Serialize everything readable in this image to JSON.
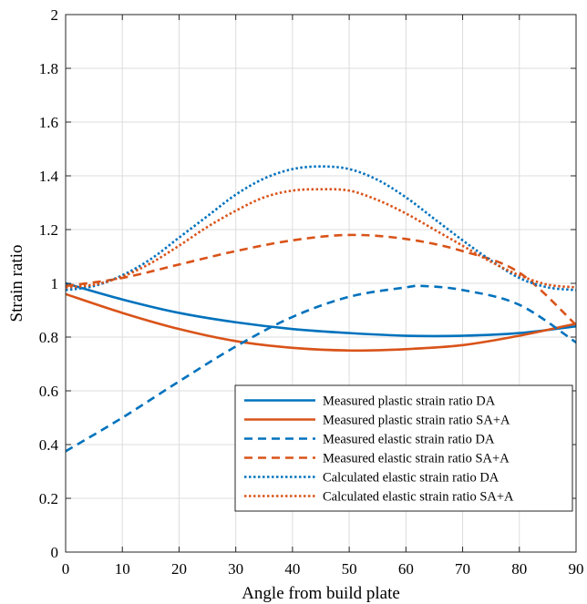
{
  "chart_data": {
    "type": "line",
    "title": "",
    "xlabel": "Angle from build plate",
    "ylabel": "Strain ratio",
    "xlim": [
      0,
      90
    ],
    "ylim": [
      0,
      2
    ],
    "xticks": [
      "0",
      "10",
      "20",
      "30",
      "40",
      "50",
      "60",
      "70",
      "80",
      "90"
    ],
    "yticks": [
      "0",
      "0.2",
      "0.4",
      "0.6",
      "0.8",
      "1",
      "1.2",
      "1.4",
      "1.6",
      "1.8",
      "2"
    ],
    "grid": true,
    "legend_position": "bottom-right",
    "series": [
      {
        "name": "Measured plastic strain ratio DA",
        "color": "#0072BD",
        "style": "solid",
        "x": [
          0,
          10,
          20,
          30,
          40,
          50,
          60,
          70,
          80,
          90
        ],
        "y": [
          1.0,
          0.94,
          0.89,
          0.855,
          0.83,
          0.815,
          0.805,
          0.805,
          0.815,
          0.84
        ]
      },
      {
        "name": "Measured plastic strain ratio SA+A",
        "color": "#D95319",
        "style": "solid",
        "x": [
          0,
          10,
          20,
          30,
          40,
          50,
          60,
          70,
          80,
          90
        ],
        "y": [
          0.96,
          0.89,
          0.83,
          0.785,
          0.76,
          0.75,
          0.755,
          0.77,
          0.805,
          0.85
        ]
      },
      {
        "name": "Measured elastic strain ratio DA",
        "color": "#0072BD",
        "style": "dashed",
        "x": [
          0,
          10,
          20,
          30,
          40,
          50,
          60,
          63,
          70,
          80,
          90
        ],
        "y": [
          0.375,
          0.5,
          0.635,
          0.765,
          0.875,
          0.95,
          0.985,
          0.99,
          0.975,
          0.92,
          0.78
        ]
      },
      {
        "name": "Measured elastic strain ratio SA+A",
        "color": "#D95319",
        "style": "dashed",
        "x": [
          0,
          10,
          20,
          30,
          40,
          50,
          60,
          70,
          80,
          90
        ],
        "y": [
          0.99,
          1.02,
          1.07,
          1.12,
          1.16,
          1.18,
          1.165,
          1.12,
          1.04,
          0.845
        ]
      },
      {
        "name": "Calculated elastic strain ratio DA",
        "color": "#0072BD",
        "style": "dotted",
        "x": [
          0,
          5,
          10,
          15,
          20,
          25,
          30,
          35,
          40,
          45,
          50,
          55,
          60,
          65,
          70,
          75,
          80,
          85,
          90
        ],
        "y": [
          0.975,
          0.99,
          1.03,
          1.09,
          1.17,
          1.25,
          1.33,
          1.39,
          1.425,
          1.435,
          1.425,
          1.385,
          1.32,
          1.24,
          1.16,
          1.085,
          1.02,
          0.985,
          0.975
        ]
      },
      {
        "name": "Calculated elastic strain ratio SA+A",
        "color": "#D95319",
        "style": "dotted",
        "x": [
          0,
          5,
          10,
          15,
          20,
          25,
          30,
          35,
          40,
          45,
          50,
          55,
          60,
          65,
          70,
          75,
          80,
          85,
          90
        ],
        "y": [
          0.985,
          0.995,
          1.025,
          1.075,
          1.14,
          1.21,
          1.27,
          1.32,
          1.345,
          1.35,
          1.345,
          1.31,
          1.26,
          1.2,
          1.14,
          1.08,
          1.03,
          0.995,
          0.985
        ]
      }
    ]
  }
}
